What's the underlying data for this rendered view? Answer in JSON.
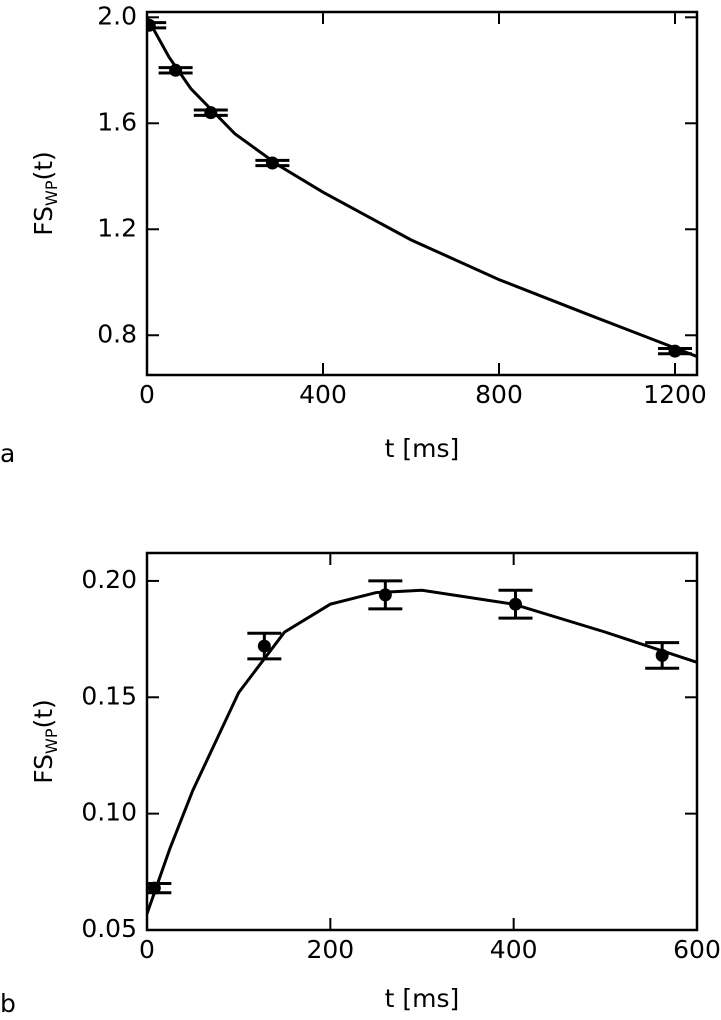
{
  "chart_data": [
    {
      "type": "scatter",
      "panel_label": "a",
      "xlabel": "t [ms]",
      "ylabel": "FS",
      "ylabel_sub": "WP",
      "ylabel_end": "(t)",
      "xlim": [
        0,
        1250
      ],
      "ylim": [
        0.65,
        2.02
      ],
      "xticks": [
        0,
        400,
        800,
        1200
      ],
      "yticks": [
        {
          "value": 2.0,
          "label": "2.0"
        },
        1.6,
        1.2,
        0.8
      ],
      "color": "#000000",
      "points": {
        "x": [
          5,
          65,
          145,
          285,
          1200
        ],
        "values": [
          1.97,
          1.8,
          1.64,
          1.45,
          0.74
        ],
        "errors": [
          0.01,
          0.01,
          0.01,
          0.01,
          0.01
        ]
      },
      "fit": {
        "x": [
          0,
          50,
          100,
          200,
          300,
          400,
          600,
          800,
          1000,
          1250
        ],
        "values": [
          2.0,
          1.85,
          1.73,
          1.56,
          1.44,
          1.34,
          1.16,
          1.01,
          0.88,
          0.72
        ]
      }
    },
    {
      "type": "scatter",
      "panel_label": "b",
      "xlabel": "t [ms]",
      "ylabel": "FS",
      "ylabel_sub": "WP",
      "ylabel_end": "(t)",
      "xlim": [
        0,
        600
      ],
      "ylim": [
        0.05,
        0.212
      ],
      "xticks": [
        0,
        200,
        400,
        600
      ],
      "yticks": [
        {
          "value": 0.2,
          "label": "0.20"
        },
        0.15,
        {
          "value": 0.1,
          "label": "0.10"
        },
        0.05
      ],
      "color": "#000000",
      "points": {
        "x": [
          8,
          128,
          260,
          402,
          562
        ],
        "values": [
          0.068,
          0.172,
          0.194,
          0.19,
          0.168
        ],
        "errors": [
          0.002,
          0.0055,
          0.006,
          0.006,
          0.0055
        ]
      },
      "fit": {
        "x": [
          0,
          25,
          50,
          100,
          150,
          200,
          250,
          300,
          400,
          500,
          600
        ],
        "values": [
          0.057,
          0.085,
          0.11,
          0.152,
          0.178,
          0.19,
          0.195,
          0.196,
          0.19,
          0.178,
          0.165
        ]
      }
    }
  ]
}
